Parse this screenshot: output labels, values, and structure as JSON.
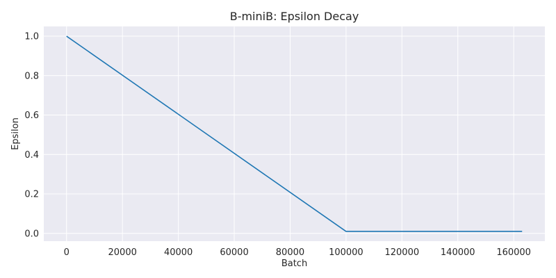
{
  "chart_data": {
    "type": "line",
    "title": "B-miniB: Epsilon Decay",
    "xlabel": "Batch",
    "ylabel": "Epsilon",
    "xlim": [
      -8150,
      171150
    ],
    "ylim": [
      -0.0395,
      1.0495
    ],
    "xticks": [
      0,
      20000,
      40000,
      60000,
      80000,
      100000,
      120000,
      140000,
      160000
    ],
    "xtick_labels": [
      "0",
      "20000",
      "40000",
      "60000",
      "80000",
      "100000",
      "120000",
      "140000",
      "160000"
    ],
    "yticks": [
      0.0,
      0.2,
      0.4,
      0.6,
      0.8,
      1.0
    ],
    "ytick_labels": [
      "0.0",
      "0.2",
      "0.4",
      "0.6",
      "0.8",
      "1.0"
    ],
    "grid": true,
    "series": [
      {
        "color": "#1f77b4",
        "x": [
          0,
          100000,
          163000
        ],
        "y": [
          1.0,
          0.01,
          0.01
        ]
      }
    ]
  }
}
